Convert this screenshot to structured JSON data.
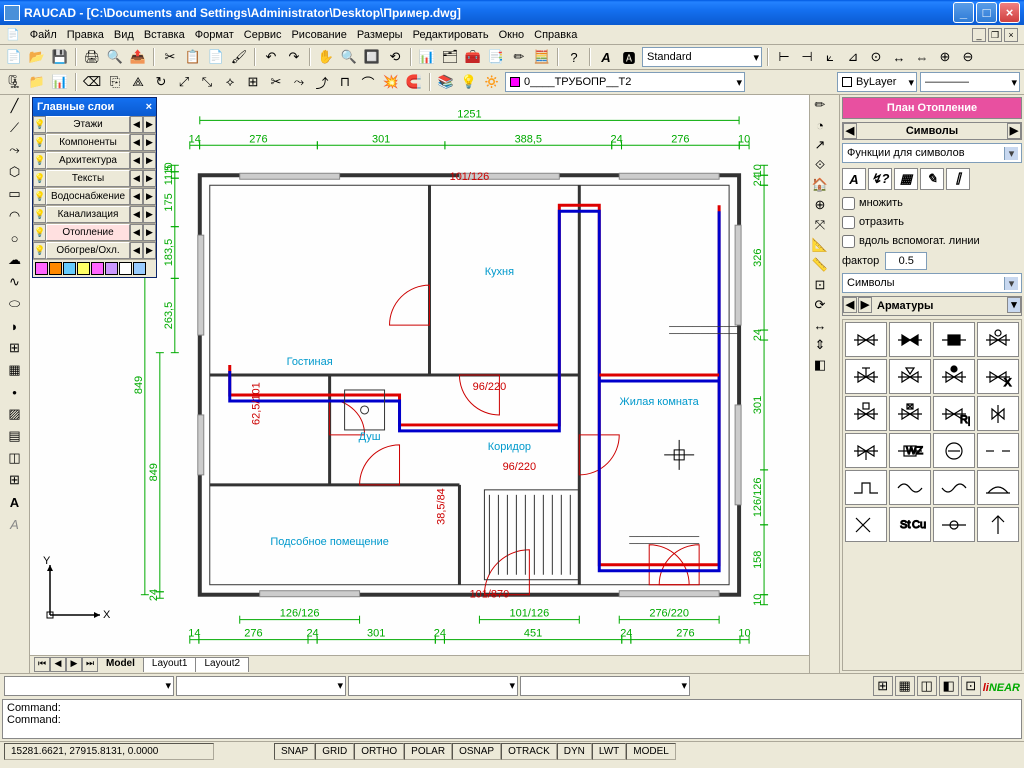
{
  "window": {
    "title": "RAUCAD - [C:\\Documents and Settings\\Administrator\\Desktop\\Пример.dwg]"
  },
  "menu": [
    "Файл",
    "Правка",
    "Вид",
    "Вставка",
    "Формат",
    "Сервис",
    "Рисование",
    "Размеры",
    "Редактировать",
    "Окно",
    "Справка"
  ],
  "toolbar2": {
    "textstyle": "Standard",
    "layer": "0____ТРУБОПР__Т2",
    "bylayer": "ByLayer"
  },
  "layerPanel": {
    "title": "Главные слои",
    "items": [
      "Этажи",
      "Компоненты",
      "Архитектура",
      "Тексты",
      "Водоснабжение",
      "Канализация",
      "Отопление",
      "Обогрев/Охл."
    ],
    "selected": 6,
    "colors": [
      "#ff66ff",
      "#ff8800",
      "#66ccff",
      "#ffff66",
      "#ff66ff",
      "#cc99ff",
      "#ffffff",
      "#99ccff"
    ]
  },
  "tabs": {
    "items": [
      "Model",
      "Layout1",
      "Layout2"
    ],
    "active": 0
  },
  "command": {
    "prompt": "Command:"
  },
  "statusbar": {
    "coords": "15281.6621, 27915.8131, 0.0000",
    "modes": [
      "SNAP",
      "GRID",
      "ORTHO",
      "POLAR",
      "OSNAP",
      "OTRACK",
      "DYN",
      "LWT",
      "MODEL"
    ]
  },
  "right": {
    "planBtn": "План Отопление",
    "section1": "Символы",
    "funcDrop": "Функции для символов",
    "chk1": "множить",
    "chk2": "отразить",
    "chk3": "вдоль вспомогат. линии",
    "factorLabel": "фактор",
    "factorVal": "0.5",
    "symDrop": "Символы",
    "armDrop": "Арматуры"
  },
  "floorplan": {
    "outer_dim_top": "1251",
    "dims_top": [
      "14",
      "276",
      "301",
      "388,5",
      "24",
      "276",
      "10"
    ],
    "dims_bottom_outer": [
      "14",
      "276",
      "24",
      "301",
      "24",
      "451",
      "24",
      "276",
      "10"
    ],
    "dims_bottom_inner": [
      "126/126",
      "101/126",
      "276/220"
    ],
    "dims_left": [
      "10",
      "11,5",
      "175",
      "183,5",
      "263,5",
      "849",
      "24",
      "14"
    ],
    "dims_right": [
      "10",
      "24",
      "326",
      "24",
      "301",
      "126/126",
      "158",
      "10"
    ],
    "wall_label_top": "101/126",
    "wall_label_bot": "101/870",
    "room_kitchen": "Кухня",
    "room_living": "Гостиная",
    "room_corridor": "Коридор",
    "room_resid": "Жилая комната",
    "room_shower": "Душ",
    "room_utility": "Подсобное помещение",
    "col_wall": "#333333",
    "col_dim": "#00aa00",
    "col_heat_red": "#dd0000",
    "col_heat_blue": "#0000cc",
    "col_room_label": "#0099cc",
    "col_door": "#cc0000",
    "col_dim_red": "#cc0000"
  },
  "brand": {
    "li": "li",
    "near": "NEAR"
  }
}
